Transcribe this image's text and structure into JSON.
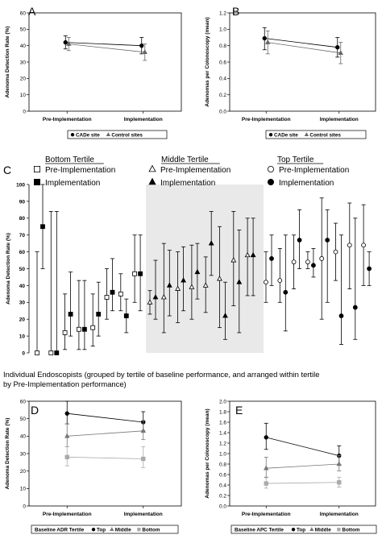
{
  "chart_data": [
    {
      "panel": "A",
      "type": "line",
      "ylabel": "Adenoma Detection Rate (%)",
      "categories": [
        "Pre-Implementation",
        "Implementation"
      ],
      "ylim": [
        0,
        60
      ],
      "yticks": [
        "0",
        "10",
        "20",
        "30",
        "40",
        "50",
        "60"
      ],
      "legend": {
        "placement": "bottom",
        "items": [
          "CADe site",
          "Control sites"
        ]
      },
      "series": [
        {
          "name": "CADe site",
          "marker": "circle",
          "values": [
            42,
            40
          ],
          "error": [
            [
              38,
              46
            ],
            [
              35,
              45
            ]
          ]
        },
        {
          "name": "Control sites",
          "marker": "triangle",
          "values": [
            41,
            36
          ],
          "error": [
            [
              37,
              45
            ],
            [
              31,
              41
            ]
          ]
        }
      ]
    },
    {
      "panel": "B",
      "type": "line",
      "ylabel": "Adenomas per Colonoscopy (mean)",
      "categories": [
        "Pre-Implementation",
        "Implementation"
      ],
      "ylim": [
        0,
        1.2
      ],
      "yticks": [
        "0.0",
        "0.2",
        "0.4",
        "0.6",
        "0.8",
        "1.0",
        "1.2"
      ],
      "legend": {
        "placement": "bottom",
        "items": [
          "CADe site",
          "Control sites"
        ]
      },
      "series": [
        {
          "name": "CADe site",
          "marker": "circle",
          "values": [
            0.89,
            0.78
          ],
          "error": [
            [
              0.75,
              1.02
            ],
            [
              0.66,
              0.9
            ]
          ]
        },
        {
          "name": "Control sites",
          "marker": "triangle",
          "values": [
            0.84,
            0.71
          ],
          "error": [
            [
              0.7,
              0.98
            ],
            [
              0.58,
              0.84
            ]
          ]
        }
      ]
    },
    {
      "panel": "C",
      "type": "scatter",
      "ylabel": "Adenoma Detection Rate (%)",
      "xlabel": "Individual Endoscopists (grouped by tertile of baseline performance, and arranged within tertile by Pre-Implementation performance)",
      "ylim": [
        0,
        100
      ],
      "yticks": [
        "0",
        "10",
        "20",
        "30",
        "40",
        "50",
        "60",
        "70",
        "80",
        "90",
        "100"
      ],
      "middle_tertile_shaded": true,
      "groups": [
        {
          "name": "Bottom Tertile",
          "pre_label": "Pre-Implementation",
          "impl_label": "Implementation",
          "marker": "square",
          "endoscopists": [
            {
              "pre": 0,
              "pre_err": [
                0,
                60
              ],
              "impl": 75,
              "impl_err": [
                50,
                100
              ]
            },
            {
              "pre": 0,
              "pre_err": [
                0,
                84
              ],
              "impl": 0,
              "impl_err": [
                0,
                84
              ]
            },
            {
              "pre": 12,
              "pre_err": [
                2,
                35
              ],
              "impl": 23,
              "impl_err": [
                10,
                48
              ]
            },
            {
              "pre": 14,
              "pre_err": [
                2,
                43
              ],
              "impl": 14,
              "impl_err": [
                2,
                43
              ]
            },
            {
              "pre": 15,
              "pre_err": [
                4,
                35
              ],
              "impl": 23,
              "impl_err": [
                10,
                42
              ]
            },
            {
              "pre": 33,
              "pre_err": [
                20,
                50
              ],
              "impl": 36,
              "impl_err": [
                25,
                56
              ]
            },
            {
              "pre": 35,
              "pre_err": [
                25,
                47
              ],
              "impl": 22,
              "impl_err": [
                12,
                32
              ]
            },
            {
              "pre": 47,
              "pre_err": [
                30,
                70
              ],
              "impl": 47,
              "impl_err": [
                25,
                70
              ]
            }
          ]
        },
        {
          "name": "Middle Tertile",
          "pre_label": "Pre-Implementation",
          "impl_label": "Implementation",
          "marker": "triangle",
          "endoscopists": [
            {
              "pre": 30,
              "pre_err": [
                23,
                37
              ],
              "impl": 33,
              "impl_err": [
                20,
                55
              ]
            },
            {
              "pre": 33,
              "pre_err": [
                12,
                65
              ],
              "impl": 40,
              "impl_err": [
                22,
                61
              ]
            },
            {
              "pre": 38,
              "pre_err": [
                18,
                60
              ],
              "impl": 43,
              "impl_err": [
                25,
                63
              ]
            },
            {
              "pre": 39,
              "pre_err": [
                20,
                64
              ],
              "impl": 48,
              "impl_err": [
                32,
                65
              ]
            },
            {
              "pre": 40,
              "pre_err": [
                24,
                57
              ],
              "impl": 65,
              "impl_err": [
                46,
                84
              ]
            },
            {
              "pre": 44,
              "pre_err": [
                15,
                75
              ],
              "impl": 22,
              "impl_err": [
                8,
                42
              ]
            },
            {
              "pre": 55,
              "pre_err": [
                28,
                84
              ],
              "impl": 42,
              "impl_err": [
                12,
                73
              ]
            },
            {
              "pre": 58,
              "pre_err": [
                34,
                80
              ],
              "impl": 58,
              "impl_err": [
                34,
                80
              ]
            }
          ]
        },
        {
          "name": "Top Tertile",
          "pre_label": "Pre-Implementation",
          "impl_label": "Implementation",
          "marker": "circle",
          "endoscopists": [
            {
              "pre": 42,
              "pre_err": [
                30,
                60
              ],
              "impl": 56,
              "impl_err": [
                40,
                70
              ]
            },
            {
              "pre": 43,
              "pre_err": [
                30,
                62
              ],
              "impl": 36,
              "impl_err": [
                13,
                70
              ]
            },
            {
              "pre": 54,
              "pre_err": [
                38,
                70
              ],
              "impl": 67,
              "impl_err": [
                50,
                85
              ]
            },
            {
              "pre": 54,
              "pre_err": [
                50,
                60
              ],
              "impl": 52,
              "impl_err": [
                45,
                62
              ]
            },
            {
              "pre": 56,
              "pre_err": [
                20,
                92
              ],
              "impl": 67,
              "impl_err": [
                30,
                85
              ]
            },
            {
              "pre": 60,
              "pre_err": [
                43,
                77
              ],
              "impl": 22,
              "impl_err": [
                5,
                70
              ]
            },
            {
              "pre": 64,
              "pre_err": [
                38,
                89
              ],
              "impl": 27,
              "impl_err": [
                8,
                80
              ]
            },
            {
              "pre": 64,
              "pre_err": [
                40,
                88
              ],
              "impl": 50,
              "impl_err": [
                40,
                60
              ]
            }
          ]
        }
      ]
    },
    {
      "panel": "D",
      "type": "line",
      "ylabel": "Adenoma Detection Rate (%)",
      "categories": [
        "Pre-Implementation",
        "Implementation"
      ],
      "ylim": [
        0,
        60
      ],
      "yticks": [
        "0",
        "10",
        "20",
        "30",
        "40",
        "50",
        "60"
      ],
      "legend": {
        "placement": "bottom",
        "title": "Baseline ADR Tertile",
        "items": [
          "Top",
          "Middle",
          "Bottom"
        ]
      },
      "series": [
        {
          "name": "Top",
          "marker": "circle",
          "values": [
            53,
            48
          ],
          "error": [
            [
              47,
              60
            ],
            [
              43,
              54
            ]
          ]
        },
        {
          "name": "Middle",
          "marker": "triangle",
          "values": [
            40,
            43
          ],
          "error": [
            [
              34,
              47
            ],
            [
              38,
              49
            ]
          ]
        },
        {
          "name": "Bottom",
          "marker": "square",
          "values": [
            28,
            27
          ],
          "error": [
            [
              23,
              34
            ],
            [
              22,
              34
            ]
          ]
        }
      ]
    },
    {
      "panel": "E",
      "type": "line",
      "ylabel": "Adenomas per Colonoscopy (mean)",
      "categories": [
        "Pre-Implementation",
        "Implementation"
      ],
      "ylim": [
        0,
        2.0
      ],
      "yticks": [
        "0.0",
        "0.2",
        "0.4",
        "0.6",
        "0.8",
        "1.0",
        "1.2",
        "1.4",
        "1.6",
        "1.8",
        "2.0"
      ],
      "legend": {
        "placement": "bottom",
        "title": "Baseline APC Tertile",
        "items": [
          "Top",
          "Middle",
          "Bottom"
        ]
      },
      "series": [
        {
          "name": "Top",
          "marker": "circle",
          "values": [
            1.31,
            0.96
          ],
          "error": [
            [
              1.08,
              1.58
            ],
            [
              0.79,
              1.15
            ]
          ]
        },
        {
          "name": "Middle",
          "marker": "triangle",
          "values": [
            0.72,
            0.8
          ],
          "error": [
            [
              0.55,
              0.93
            ],
            [
              0.67,
              0.96
            ]
          ]
        },
        {
          "name": "Bottom",
          "marker": "square",
          "values": [
            0.43,
            0.45
          ],
          "error": [
            [
              0.34,
              0.54
            ],
            [
              0.36,
              0.55
            ]
          ]
        }
      ]
    }
  ]
}
